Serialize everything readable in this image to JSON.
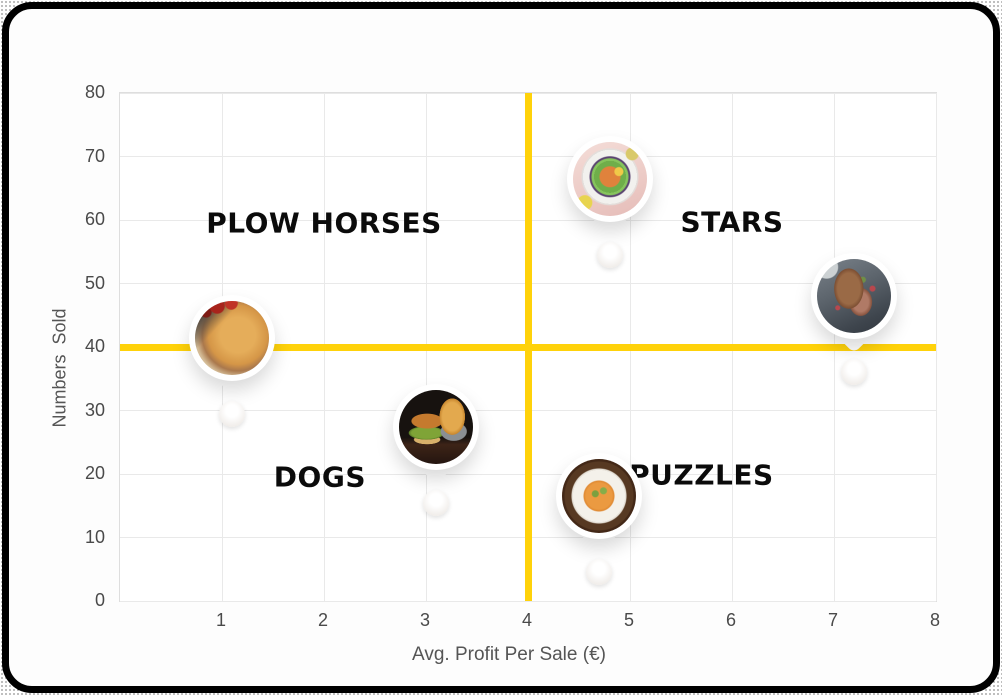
{
  "frame": {
    "border_color": "#000000",
    "card_color": "#fdfdfd"
  },
  "colors": {
    "accent_yellow": "#FFD20A",
    "grid": "#e9e9e9",
    "plot_border": "#dedede",
    "tick_text": "#4a4a4a",
    "axis_title_text": "#555555",
    "quadrant_text": "#0b0b0b"
  },
  "chart_data": {
    "type": "scatter",
    "title": "",
    "xlabel": "Avg. Profit Per Sale (€)",
    "ylabel": "Numbers  Sold",
    "xlim": [
      0,
      8
    ],
    "ylim": [
      0,
      80
    ],
    "x_ticks": [
      1,
      2,
      3,
      4,
      5,
      6,
      7,
      8
    ],
    "y_ticks": [
      0,
      10,
      20,
      30,
      40,
      50,
      60,
      70,
      80
    ],
    "grid": true,
    "crosshair": {
      "x": 4,
      "y": 40,
      "color": "#FFD20A"
    },
    "quadrant_labels": [
      {
        "text": "PLOW HORSES",
        "x": 2.0,
        "y": 59.5
      },
      {
        "text": "STARS",
        "x": 6.0,
        "y": 59.7
      },
      {
        "text": "DOGS",
        "x": 1.96,
        "y": 19.5
      },
      {
        "text": "PUZZLES",
        "x": 5.7,
        "y": 19.8
      }
    ],
    "points": [
      {
        "name": "spaghetti",
        "photo": "pasta",
        "x": 1.1,
        "y": 29.5
      },
      {
        "name": "burger-and-fries",
        "photo": "burger",
        "x": 3.1,
        "y": 15.5
      },
      {
        "name": "poke-bowl",
        "photo": "salad",
        "x": 4.8,
        "y": 54.5
      },
      {
        "name": "steak",
        "photo": "steak",
        "x": 7.2,
        "y": 36
      },
      {
        "name": "tomato-soup",
        "photo": "soup",
        "x": 4.7,
        "y": 4.5
      }
    ]
  }
}
